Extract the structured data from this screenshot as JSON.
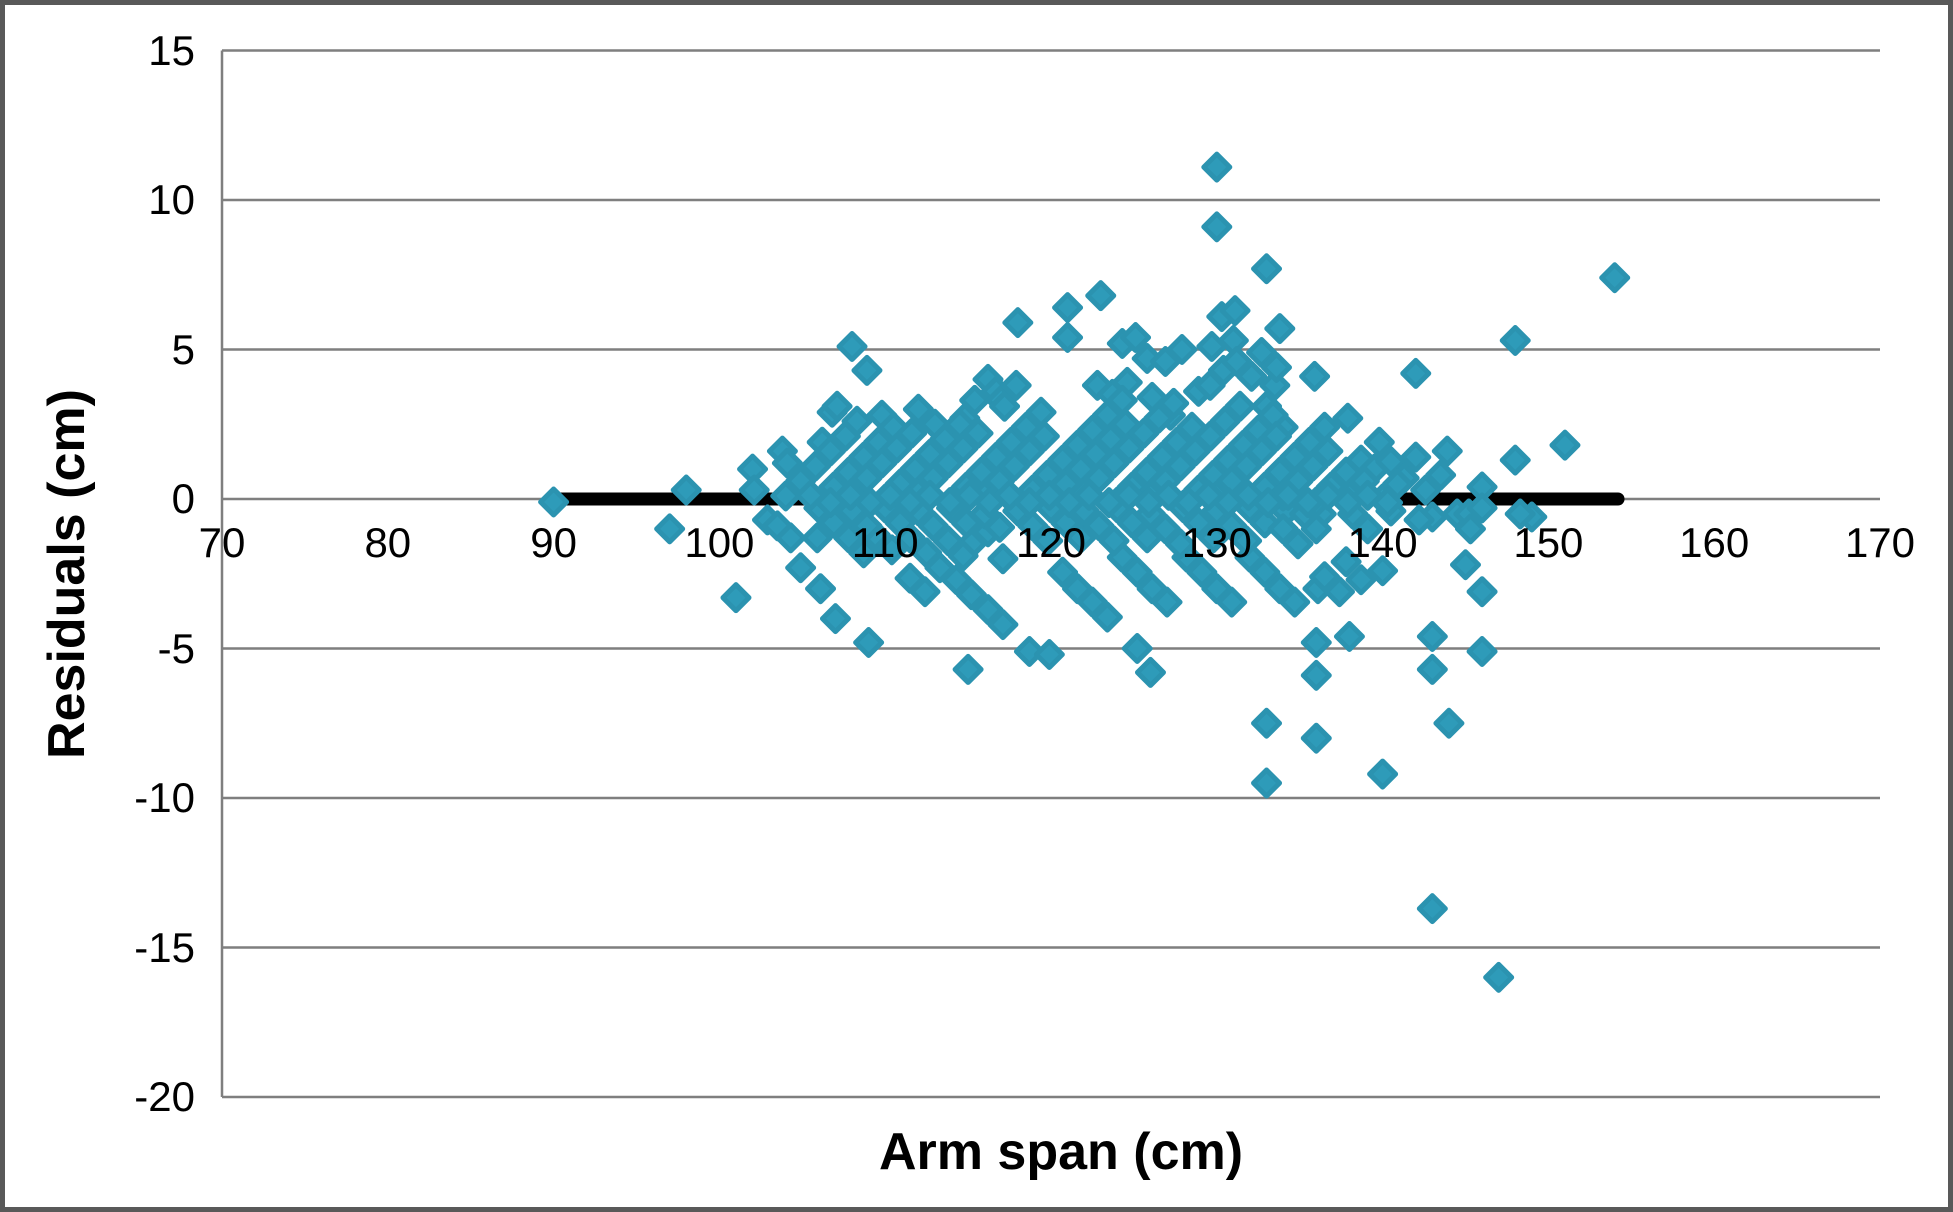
{
  "chart_data": {
    "type": "scatter",
    "title": "",
    "xlabel": "Arm span (cm)",
    "ylabel": "Residuals (cm)",
    "x_ticks": [
      70,
      80,
      90,
      100,
      110,
      120,
      130,
      140,
      150,
      160,
      170
    ],
    "y_ticks": [
      15,
      10,
      5,
      0,
      -5,
      -10,
      -15,
      -20
    ],
    "xlim": [
      70,
      170
    ],
    "ylim": [
      -20,
      15
    ],
    "grid": "horizontal-only",
    "legend": "none",
    "marker": {
      "shape": "diamond",
      "color": "#2E9BB9",
      "edge_color": "#2B93B0"
    },
    "colors": {
      "gridline": "#7F7F7F",
      "frame_border": "#595959",
      "trend_line": "#000000",
      "background": "#FFFFFF"
    },
    "zero_line": {
      "y": 0,
      "x_start": 90,
      "x_end": 154.2,
      "color": "#000000"
    },
    "points": [
      [
        90,
        -0.1
      ],
      [
        97,
        -1
      ],
      [
        98,
        0.3
      ],
      [
        101,
        -3.3
      ],
      [
        102,
        1
      ],
      [
        102.1,
        0.3
      ],
      [
        102.9,
        -0.7
      ],
      [
        103.5,
        -0.9
      ],
      [
        103.8,
        1.6
      ],
      [
        104.1,
        1.2
      ],
      [
        104.3,
        -1.3
      ],
      [
        104.9,
        -2.3
      ],
      [
        105.9,
        -1.3
      ],
      [
        106.1,
        -3
      ],
      [
        106.2,
        1.9
      ],
      [
        106.8,
        2.9
      ],
      [
        107.1,
        3.1
      ],
      [
        107,
        -4
      ],
      [
        108,
        5.1
      ],
      [
        108.9,
        4.3
      ],
      [
        108.3,
        2.6
      ],
      [
        109,
        -4.8
      ],
      [
        109.8,
        2.8
      ],
      [
        110.5,
        1.9
      ],
      [
        112,
        3
      ],
      [
        113,
        2.5
      ],
      [
        114,
        2.2
      ],
      [
        114.8,
        2.7
      ],
      [
        115.4,
        3.3
      ],
      [
        116.2,
        4
      ],
      [
        116.7,
        3.6
      ],
      [
        117,
        3.3
      ],
      [
        117.2,
        3.1
      ],
      [
        117.9,
        3.8
      ],
      [
        118,
        5.9
      ],
      [
        115,
        -5.7
      ],
      [
        118.7,
        -5.1
      ],
      [
        119.9,
        -5.2
      ],
      [
        121,
        6.4
      ],
      [
        121,
        5.4
      ],
      [
        122.8,
        3.8
      ],
      [
        123,
        6.8
      ],
      [
        123.7,
        3.5
      ],
      [
        124.3,
        5.2
      ],
      [
        124.6,
        3.9
      ],
      [
        125.1,
        5.4
      ],
      [
        125.8,
        4.7
      ],
      [
        126.1,
        3.4
      ],
      [
        126.9,
        4.6
      ],
      [
        127.2,
        2.8
      ],
      [
        127.9,
        5
      ],
      [
        125.2,
        -5
      ],
      [
        126,
        -5.8
      ],
      [
        128.9,
        3.6
      ],
      [
        129.6,
        3.8
      ],
      [
        129.7,
        5.1
      ],
      [
        130.3,
        6.1
      ],
      [
        131.1,
        6.3
      ],
      [
        131,
        5.3
      ],
      [
        130.4,
        4.3
      ],
      [
        131.2,
        4.6
      ],
      [
        132.1,
        4.1
      ],
      [
        132.7,
        4.9
      ],
      [
        133,
        7.7
      ],
      [
        133.8,
        5.7
      ],
      [
        130,
        11.1
      ],
      [
        130,
        9.1
      ],
      [
        133.5,
        3.8
      ],
      [
        133.6,
        4.4
      ],
      [
        134,
        2.4
      ],
      [
        133,
        3.1
      ],
      [
        135.9,
        4.1
      ],
      [
        137.9,
        2.7
      ],
      [
        139.8,
        1.9
      ],
      [
        138.7,
        1.3
      ],
      [
        139.5,
        1
      ],
      [
        140.5,
        1.25
      ],
      [
        141.3,
        0.7
      ],
      [
        142,
        1.4
      ],
      [
        143.9,
        1.6
      ],
      [
        146,
        0.4
      ],
      [
        148,
        1.3
      ],
      [
        142,
        4.2
      ],
      [
        148,
        5.3
      ],
      [
        151,
        1.8
      ],
      [
        154,
        7.4
      ],
      [
        140,
        -2.4
      ],
      [
        145,
        -2.2
      ],
      [
        146,
        -3.1
      ],
      [
        143,
        -4.6
      ],
      [
        143,
        -5.7
      ],
      [
        146,
        -5.1
      ],
      [
        144,
        -7.5
      ],
      [
        140,
        -9.2
      ],
      [
        143,
        -13.7
      ],
      [
        147,
        -16
      ],
      [
        133,
        -7.5
      ],
      [
        136,
        -8
      ],
      [
        133,
        -9.5
      ],
      [
        136,
        -4.8
      ],
      [
        136,
        -5.9
      ],
      [
        138,
        -4.6
      ],
      [
        144.5,
        -0.5
      ],
      [
        145.2,
        -0.5
      ],
      [
        145.3,
        -1
      ],
      [
        146,
        -0.3
      ],
      [
        149,
        -0.6
      ],
      [
        148.3,
        -0.5
      ],
      [
        143,
        -0.6
      ],
      [
        142.2,
        -0.7
      ],
      [
        134.2,
        -0.4
      ],
      [
        135.3,
        -0.5
      ],
      [
        136.3,
        -0.5
      ],
      [
        138.2,
        -0.5
      ],
      [
        139.1,
        -1
      ],
      [
        140.5,
        -0.4
      ],
      [
        137.8,
        -2.1
      ],
      [
        138.7,
        -2.7
      ],
      [
        136.1,
        -3
      ],
      [
        136.5,
        -2.6
      ],
      [
        137.4,
        -3.1
      ],
      [
        120.7,
        -2.45
      ],
      [
        121.6,
        -3
      ],
      [
        122.5,
        -3.45
      ],
      [
        123.4,
        -3.95
      ],
      [
        124.3,
        -1.95
      ],
      [
        125.2,
        -2.45
      ],
      [
        126.1,
        -3
      ],
      [
        127,
        -3.45
      ],
      [
        128.2,
        -1.95
      ],
      [
        129.1,
        -2.45
      ],
      [
        130,
        -3
      ],
      [
        130.9,
        -3.45
      ],
      [
        132,
        -1.95
      ],
      [
        132.9,
        -2.45
      ],
      [
        133.8,
        -3
      ],
      [
        134.7,
        -3.45
      ],
      [
        109.4,
        -1.2
      ],
      [
        110.4,
        -1.7
      ],
      [
        111.5,
        -1.3
      ],
      [
        112.5,
        -1.8
      ],
      [
        113.3,
        -2.3
      ],
      [
        111.5,
        -2.65
      ],
      [
        112.4,
        -3.1
      ],
      [
        114.3,
        -2.7
      ],
      [
        115.2,
        -3.2
      ],
      [
        116.2,
        -3.7
      ],
      [
        117.1,
        -4.2
      ],
      [
        115.2,
        -1.5
      ],
      [
        116.2,
        -1.1
      ],
      [
        117.1,
        -2
      ],
      [
        104,
        0.1
      ],
      [
        104.9,
        0.6
      ],
      [
        105.8,
        1.1
      ],
      [
        106.7,
        1.6
      ],
      [
        107.6,
        2.1
      ],
      [
        106,
        -0.1
      ],
      [
        106.9,
        0.4
      ],
      [
        107.8,
        0.9
      ],
      [
        108.7,
        1.4
      ],
      [
        109.6,
        1.9
      ],
      [
        110.5,
        2.4
      ],
      [
        108,
        0.2
      ],
      [
        108.9,
        0.7
      ],
      [
        109.8,
        1.2
      ],
      [
        110.7,
        1.7
      ],
      [
        111.6,
        2.2
      ],
      [
        110,
        0
      ],
      [
        110.9,
        0.5
      ],
      [
        111.8,
        1
      ],
      [
        112.7,
        1.5
      ],
      [
        113.6,
        2
      ],
      [
        114.5,
        2.5
      ],
      [
        112,
        0.2
      ],
      [
        112.9,
        0.7
      ],
      [
        113.8,
        1.2
      ],
      [
        114.7,
        1.7
      ],
      [
        115.6,
        2.2
      ],
      [
        114,
        -0.1
      ],
      [
        114.9,
        0.4
      ],
      [
        115.8,
        0.9
      ],
      [
        116.7,
        1.4
      ],
      [
        117.6,
        1.9
      ],
      [
        118.5,
        2.4
      ],
      [
        119.4,
        2.9
      ],
      [
        116,
        0.1
      ],
      [
        116.9,
        0.6
      ],
      [
        117.8,
        1.1
      ],
      [
        118.7,
        1.6
      ],
      [
        119.6,
        2.1
      ],
      [
        118,
        -0.2
      ],
      [
        118.9,
        0.3
      ],
      [
        119.8,
        0.8
      ],
      [
        120.7,
        1.3
      ],
      [
        121.6,
        1.8
      ],
      [
        122.5,
        2.3
      ],
      [
        123.4,
        2.8
      ],
      [
        124.3,
        3.3
      ],
      [
        120,
        0
      ],
      [
        120.9,
        0.5
      ],
      [
        121.8,
        1
      ],
      [
        122.7,
        1.5
      ],
      [
        123.6,
        2
      ],
      [
        124.5,
        2.5
      ],
      [
        122,
        0.2
      ],
      [
        122.9,
        0.7
      ],
      [
        123.8,
        1.2
      ],
      [
        124.7,
        1.7
      ],
      [
        125.6,
        2.2
      ],
      [
        126.5,
        2.7
      ],
      [
        127.4,
        3.2
      ],
      [
        124,
        -0.1
      ],
      [
        124.9,
        0.4
      ],
      [
        125.8,
        0.9
      ],
      [
        126.7,
        1.4
      ],
      [
        127.6,
        1.9
      ],
      [
        128.5,
        2.4
      ],
      [
        126,
        0.1
      ],
      [
        126.9,
        0.6
      ],
      [
        127.8,
        1.1
      ],
      [
        128.7,
        1.6
      ],
      [
        129.6,
        2.1
      ],
      [
        130.5,
        2.6
      ],
      [
        131.4,
        3.1
      ],
      [
        128,
        -0.2
      ],
      [
        128.9,
        0.3
      ],
      [
        129.8,
        0.8
      ],
      [
        130.7,
        1.3
      ],
      [
        131.6,
        1.8
      ],
      [
        132.5,
        2.3
      ],
      [
        133.4,
        2.8
      ],
      [
        130,
        0.1
      ],
      [
        130.9,
        0.6
      ],
      [
        131.8,
        1.1
      ],
      [
        132.7,
        1.6
      ],
      [
        133.6,
        2.1
      ],
      [
        132,
        -0.1
      ],
      [
        132.9,
        0.4
      ],
      [
        133.8,
        0.9
      ],
      [
        134.7,
        1.4
      ],
      [
        135.6,
        1.9
      ],
      [
        136.5,
        2.4
      ],
      [
        134,
        0.1
      ],
      [
        134.9,
        0.6
      ],
      [
        135.8,
        1.1
      ],
      [
        136.7,
        1.6
      ],
      [
        136,
        -0.1
      ],
      [
        136.9,
        0.4
      ],
      [
        137.8,
        0.9
      ],
      [
        138,
        0.1
      ],
      [
        138.9,
        0.6
      ],
      [
        140,
        0
      ],
      [
        140.9,
        0.5
      ],
      [
        142.6,
        0.3
      ],
      [
        143.5,
        0.8
      ],
      [
        106,
        -0.3
      ],
      [
        106.9,
        -0.8
      ],
      [
        107.8,
        -1.3
      ],
      [
        108.7,
        -1.8
      ],
      [
        108,
        -0.4
      ],
      [
        108.9,
        -0.9
      ],
      [
        110,
        -0.3
      ],
      [
        110.9,
        -0.8
      ],
      [
        112,
        -0.4
      ],
      [
        112.9,
        -0.9
      ],
      [
        113.8,
        -1.4
      ],
      [
        114.7,
        -1.9
      ],
      [
        114,
        -0.3
      ],
      [
        114.9,
        -0.8
      ],
      [
        116,
        -0.5
      ],
      [
        116.9,
        -0.95
      ],
      [
        118,
        -0.4
      ],
      [
        118.9,
        -0.9
      ],
      [
        119.8,
        -1.4
      ],
      [
        120,
        -0.3
      ],
      [
        120.9,
        -0.8
      ],
      [
        121.8,
        -1.3
      ],
      [
        122,
        -0.4
      ],
      [
        122.9,
        -0.9
      ],
      [
        123.8,
        -1.4
      ],
      [
        124,
        -0.3
      ],
      [
        124.9,
        -0.8
      ],
      [
        125.8,
        -1.3
      ],
      [
        126,
        -0.5
      ],
      [
        126.9,
        -1
      ],
      [
        127.8,
        -1.5
      ],
      [
        128,
        -0.3
      ],
      [
        128.9,
        -0.8
      ],
      [
        129.8,
        -1.3
      ],
      [
        130,
        -0.4
      ],
      [
        130.9,
        -0.9
      ],
      [
        131.8,
        -1.4
      ],
      [
        132,
        -0.3
      ],
      [
        132.9,
        -0.8
      ],
      [
        134,
        -1
      ],
      [
        134.9,
        -1.5
      ],
      [
        136,
        -1
      ],
      [
        105.5,
        0.12
      ],
      [
        106.7,
        -0.12
      ],
      [
        107.9,
        0.12
      ],
      [
        109.1,
        -0.12
      ],
      [
        110.3,
        0.12
      ],
      [
        111.5,
        -0.12
      ],
      [
        112.7,
        0.12
      ],
      [
        113.9,
        -0.12
      ],
      [
        115.1,
        0.12
      ],
      [
        116.3,
        -0.12
      ],
      [
        117.5,
        0.12
      ],
      [
        118.7,
        -0.12
      ],
      [
        119.9,
        0.12
      ],
      [
        121.1,
        -0.12
      ],
      [
        122.3,
        0.12
      ],
      [
        123.5,
        -0.12
      ],
      [
        124.7,
        0.12
      ],
      [
        125.9,
        -0.12
      ],
      [
        127.1,
        0.12
      ],
      [
        128.3,
        -0.12
      ],
      [
        129.5,
        0.12
      ],
      [
        130.7,
        -0.12
      ],
      [
        131.9,
        0.12
      ],
      [
        133.1,
        -0.12
      ],
      [
        134.3,
        0.12
      ],
      [
        135.5,
        -0.12
      ],
      [
        136.7,
        0.12
      ],
      [
        137.9,
        -0.12
      ],
      [
        139.1,
        0.12
      ],
      [
        140.3,
        -0.12
      ]
    ]
  }
}
